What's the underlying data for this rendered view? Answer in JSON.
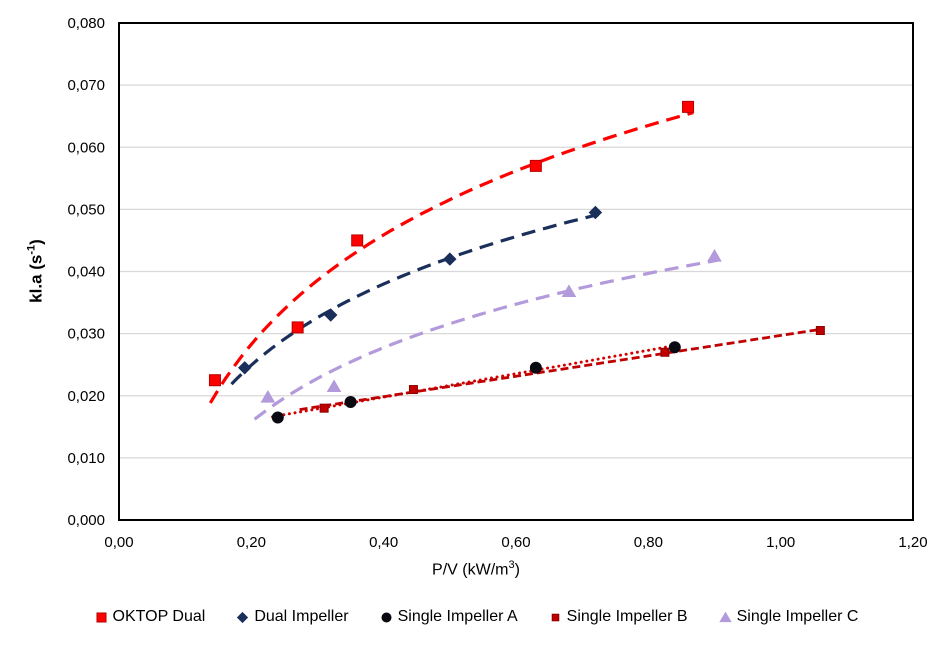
{
  "chart_data": {
    "type": "scatter",
    "title": "",
    "xlabel": {
      "prefix": "P/V (kW/m",
      "sup": "3",
      "suffix": ")"
    },
    "ylabel": {
      "prefix": "kl.a (s",
      "sup": "-1",
      "suffix": ")"
    },
    "x_axis": {
      "min": 0,
      "max": 1.2,
      "ticks": [
        {
          "v": 0.0,
          "label": "0,00"
        },
        {
          "v": 0.2,
          "label": "0,20"
        },
        {
          "v": 0.4,
          "label": "0,40"
        },
        {
          "v": 0.6,
          "label": "0,60"
        },
        {
          "v": 0.8,
          "label": "0,80"
        },
        {
          "v": 1.0,
          "label": "1,00"
        },
        {
          "v": 1.2,
          "label": "1,20"
        }
      ]
    },
    "y_axis": {
      "min": 0,
      "max": 0.08,
      "ticks": [
        {
          "v": 0.0,
          "label": "0,000"
        },
        {
          "v": 0.01,
          "label": "0,010"
        },
        {
          "v": 0.02,
          "label": "0,020"
        },
        {
          "v": 0.03,
          "label": "0,030"
        },
        {
          "v": 0.04,
          "label": "0,040"
        },
        {
          "v": 0.05,
          "label": "0,050"
        },
        {
          "v": 0.06,
          "label": "0,060"
        },
        {
          "v": 0.07,
          "label": "0,070"
        },
        {
          "v": 0.08,
          "label": "0,080"
        }
      ]
    },
    "grid": "horizontal-only",
    "legend_position": "bottom",
    "colors": {
      "grid": "#D8D8D8",
      "axis": "#000000",
      "text": "#000000"
    },
    "series": [
      {
        "id": "oktop-dual",
        "name": "OKTOP Dual",
        "marker": "square",
        "color": "#FF0000",
        "marker_stroke": "#B70000",
        "marker_size": 11,
        "trend": {
          "type": "log",
          "range": [
            0.138,
            0.868
          ],
          "dash": "14 8",
          "width": 3.2,
          "color": "#FF0000"
        },
        "points": [
          [
            0.145,
            0.0225
          ],
          [
            0.27,
            0.031
          ],
          [
            0.36,
            0.045
          ],
          [
            0.63,
            0.057
          ],
          [
            0.86,
            0.0665
          ]
        ]
      },
      {
        "id": "dual-impeller",
        "name": "Dual Impeller",
        "marker": "diamond",
        "color": "#1B2F5B",
        "marker_stroke": "#1B2F5B",
        "marker_size": 12,
        "trend": {
          "type": "log",
          "range": [
            0.17,
            0.725
          ],
          "dash": "14 8",
          "width": 3.2,
          "color": "#1B2F5B"
        },
        "points": [
          [
            0.19,
            0.0245
          ],
          [
            0.32,
            0.033
          ],
          [
            0.5,
            0.042
          ],
          [
            0.72,
            0.0495
          ]
        ]
      },
      {
        "id": "single-impeller-a",
        "name": "Single Impeller A",
        "marker": "circle",
        "color": "#0A0A12",
        "marker_stroke": "#0A0A12",
        "marker_size": 11,
        "trend": {
          "type": "linear",
          "range": [
            0.232,
            0.845
          ],
          "dash": "0.1 5.6",
          "width": 3,
          "linecap": "round",
          "color": "#D40000"
        },
        "points": [
          [
            0.24,
            0.0165
          ],
          [
            0.35,
            0.019
          ],
          [
            0.63,
            0.0245
          ],
          [
            0.84,
            0.0278
          ]
        ]
      },
      {
        "id": "single-impeller-b",
        "name": "Single Impeller B",
        "marker": "small-square",
        "color": "#C00000",
        "marker_stroke": "#8B0000",
        "marker_size": 8,
        "trend": {
          "type": "linear",
          "range": [
            0.273,
            1.065
          ],
          "dash": "8 4",
          "width": 2.8,
          "color": "#C00000"
        },
        "points": [
          [
            0.31,
            0.018
          ],
          [
            0.445,
            0.021
          ],
          [
            0.825,
            0.027
          ],
          [
            1.06,
            0.0305
          ]
        ]
      },
      {
        "id": "single-impeller-c",
        "name": "Single Impeller C",
        "marker": "triangle",
        "color": "#B39BDB",
        "marker_stroke": "#B39BDB",
        "marker_size": 12,
        "trend": {
          "type": "log",
          "range": [
            0.205,
            0.905
          ],
          "dash": "14 8",
          "width": 3.2,
          "color": "#B39BDB"
        },
        "points": [
          [
            0.225,
            0.0198
          ],
          [
            0.325,
            0.0215
          ],
          [
            0.68,
            0.0368
          ],
          [
            0.9,
            0.0425
          ]
        ]
      }
    ]
  }
}
